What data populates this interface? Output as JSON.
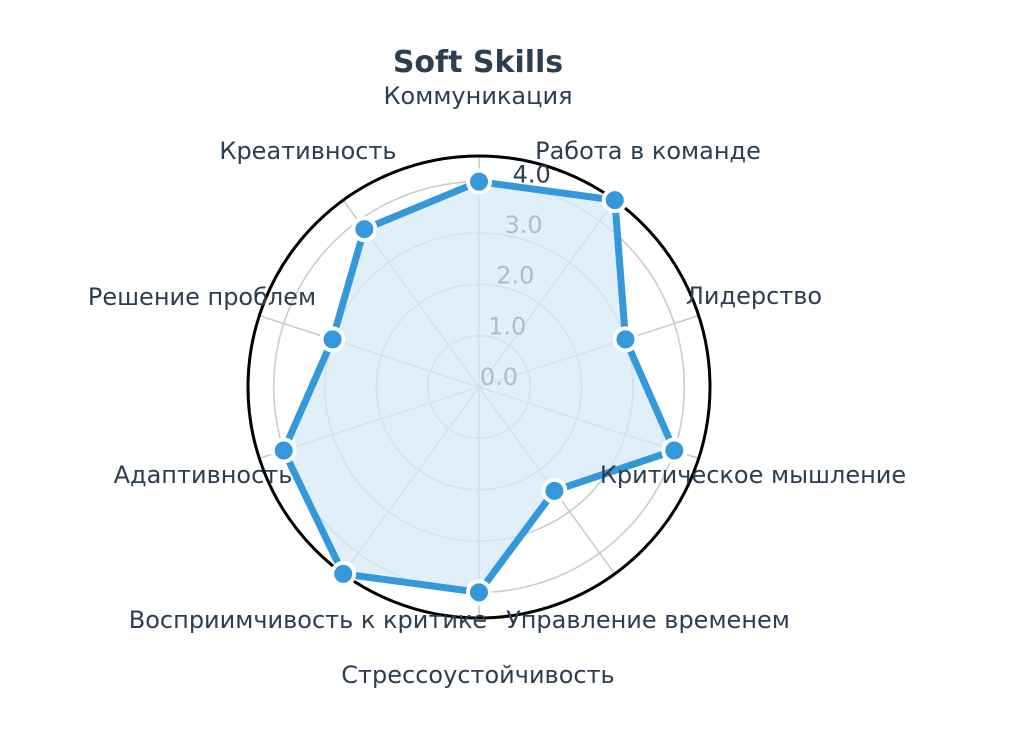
{
  "chart_data": {
    "type": "radar",
    "title": "Soft Skills",
    "categories": [
      "Коммуникация",
      "Работа в команде",
      "Лидерство",
      "Критическое мышление",
      "Управление временем",
      "Стрессоустойчивость",
      "Восприимчивость к критике",
      "Адаптивность",
      "Решение проблем",
      "Креативность"
    ],
    "series": [
      {
        "values": [
          4.0,
          4.5,
          3.0,
          4.0,
          2.5,
          4.0,
          4.5,
          4.0,
          3.0,
          3.8
        ]
      }
    ],
    "r_ticks": [
      "0.0",
      "1.0",
      "2.0",
      "3.0",
      "4.0"
    ],
    "r_range": [
      0,
      4.5
    ],
    "grid": true,
    "colors": {
      "line": "#3498db",
      "fill": "#d6e9f8",
      "marker_edge": "#ffffff",
      "grid": "#cccccc",
      "frame": "#000000",
      "text": "#2c3e50"
    }
  }
}
